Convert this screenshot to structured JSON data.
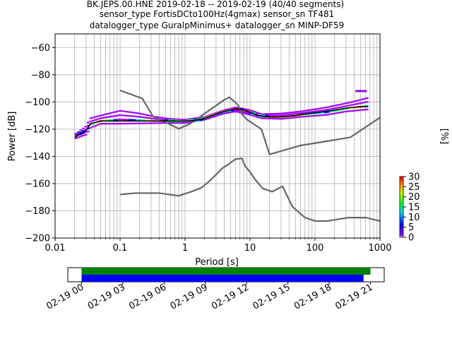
{
  "title": {
    "line1": "BK.JEPS.00.HNE   2019-02-18 -- 2019-02-19  (40/40 segments)",
    "line2": "sensor_type FortisDCto100Hz(4gmax) sensor_sn TF481",
    "line3": "datalogger_type GuralpMinimus+ datalogger_sn MINP-DF59"
  },
  "chart_data": [
    {
      "type": "heatmap",
      "xlabel": "Period [s]",
      "ylabel": "Power [dB]",
      "xscale": "log",
      "xlim": [
        0.01,
        1000
      ],
      "ylim": [
        -200,
        -50
      ],
      "grid": true,
      "x_ticks": [
        {
          "value": 0.01,
          "label": "0.01"
        },
        {
          "value": 0.1,
          "label": "0.1"
        },
        {
          "value": 1,
          "label": "1"
        },
        {
          "value": 10,
          "label": "10"
        },
        {
          "value": 100,
          "label": "100"
        },
        {
          "value": 1000,
          "label": "1000"
        }
      ],
      "y_ticks": [
        {
          "value": -60,
          "label": "−60"
        },
        {
          "value": -80,
          "label": "−80"
        },
        {
          "value": -100,
          "label": "−100"
        },
        {
          "value": -120,
          "label": "−120"
        },
        {
          "value": -140,
          "label": "−140"
        },
        {
          "value": -160,
          "label": "−160"
        },
        {
          "value": -180,
          "label": "−180"
        },
        {
          "value": -200,
          "label": "−200"
        }
      ],
      "colorbar": {
        "label": "[%]",
        "range": [
          0,
          30
        ],
        "ticks": [
          {
            "value": 0,
            "label": "0"
          },
          {
            "value": 5,
            "label": "5"
          },
          {
            "value": 10,
            "label": "10"
          },
          {
            "value": 15,
            "label": "15"
          },
          {
            "value": 20,
            "label": "20"
          },
          {
            "value": 25,
            "label": "25"
          },
          {
            "value": 30,
            "label": "30"
          }
        ]
      },
      "curves": {
        "nhnm_accel": {
          "color": "#666666",
          "points": [
            [
              0.1,
              -91.5
            ],
            [
              0.22,
              -97.5
            ],
            [
              0.32,
              -110.5
            ],
            [
              0.8,
              -119.7
            ],
            [
              1.2,
              -116
            ],
            [
              4,
              -98.5
            ],
            [
              4.8,
              -96.5
            ],
            [
              6.5,
              -102
            ],
            [
              7.5,
              -109
            ],
            [
              9,
              -113
            ],
            [
              15,
              -120
            ],
            [
              20,
              -138.5
            ],
            [
              60,
              -132
            ],
            [
              350,
              -126
            ],
            [
              1000,
              -111.5
            ]
          ]
        },
        "nlnm_accel": {
          "color": "#666666",
          "points": [
            [
              0.1,
              -168
            ],
            [
              0.17,
              -167
            ],
            [
              0.4,
              -167
            ],
            [
              0.8,
              -169
            ],
            [
              1.24,
              -166
            ],
            [
              1.8,
              -163
            ],
            [
              2.4,
              -158
            ],
            [
              3.8,
              -148.5
            ],
            [
              4.6,
              -146
            ],
            [
              6,
              -142
            ],
            [
              7.5,
              -141.5
            ],
            [
              8.5,
              -147.5
            ],
            [
              10,
              -151.5
            ],
            [
              12,
              -157
            ],
            [
              15.6,
              -163.5
            ],
            [
              21.9,
              -166
            ],
            [
              31.6,
              -162
            ],
            [
              45,
              -177
            ],
            [
              70,
              -185
            ],
            [
              101,
              -187.5
            ],
            [
              154,
              -187.5
            ],
            [
              328,
              -185
            ],
            [
              600,
              -185
            ],
            [
              1000,
              -187.5
            ]
          ]
        },
        "mode": {
          "color": "#000000",
          "points": [
            [
              0.02,
              -126
            ],
            [
              0.025,
              -123
            ],
            [
              0.03,
              -121
            ],
            [
              0.035,
              -116
            ],
            [
              0.05,
              -114
            ],
            [
              0.1,
              -114
            ],
            [
              0.3,
              -114
            ],
            [
              0.6,
              -114
            ],
            [
              1,
              -114
            ],
            [
              1.5,
              -113.5
            ],
            [
              2,
              -112
            ],
            [
              3,
              -109
            ],
            [
              4,
              -107
            ],
            [
              5,
              -106
            ],
            [
              6,
              -105
            ],
            [
              8,
              -106
            ],
            [
              10,
              -107.5
            ],
            [
              13,
              -110
            ],
            [
              20,
              -111
            ],
            [
              30,
              -111
            ],
            [
              50,
              -110
            ],
            [
              80,
              -108.5
            ],
            [
              120,
              -107.5
            ],
            [
              200,
              -106
            ],
            [
              300,
              -104.5
            ],
            [
              500,
              -103.5
            ],
            [
              660,
              -103.5
            ]
          ]
        },
        "spread_upper": {
          "points": [
            [
              0.02,
              -124
            ],
            [
              0.03,
              -118
            ],
            [
              0.035,
              -112
            ],
            [
              0.05,
              -110
            ],
            [
              0.1,
              -106.5
            ],
            [
              0.2,
              -108.5
            ],
            [
              0.35,
              -111
            ],
            [
              0.6,
              -112.5
            ],
            [
              1,
              -113
            ],
            [
              2,
              -111
            ],
            [
              4,
              -106
            ],
            [
              6,
              -104
            ],
            [
              10,
              -106
            ],
            [
              15,
              -109
            ],
            [
              30,
              -108.5
            ],
            [
              60,
              -107
            ],
            [
              150,
              -104
            ],
            [
              300,
              -101
            ],
            [
              450,
              -99
            ],
            [
              660,
              -97
            ]
          ]
        },
        "spread_lower": {
          "points": [
            [
              0.02,
              -127
            ],
            [
              0.03,
              -124
            ],
            [
              0.035,
              -119
            ],
            [
              0.05,
              -116
            ],
            [
              0.1,
              -116
            ],
            [
              0.5,
              -115.5
            ],
            [
              1,
              -115.5
            ],
            [
              2,
              -113
            ],
            [
              4,
              -108.5
            ],
            [
              6,
              -107
            ],
            [
              10,
              -109.5
            ],
            [
              15,
              -112
            ],
            [
              30,
              -112.5
            ],
            [
              60,
              -111
            ],
            [
              150,
              -109.5
            ],
            [
              300,
              -107
            ],
            [
              660,
              -105.5
            ]
          ]
        },
        "outliers": [
          [
            450,
            -92
          ],
          [
            500,
            -92
          ],
          [
            580,
            -92
          ]
        ]
      }
    },
    {
      "type": "timeline",
      "time_ticks": [
        {
          "hour": 0,
          "label": "02-19 00"
        },
        {
          "hour": 3,
          "label": "02-19 03"
        },
        {
          "hour": 6,
          "label": "02-19 06"
        },
        {
          "hour": 9,
          "label": "02-19 09"
        },
        {
          "hour": 12,
          "label": "02-19 12"
        },
        {
          "hour": 15,
          "label": "02-19 15"
        },
        {
          "hour": 18,
          "label": "02-19 18"
        },
        {
          "hour": 21,
          "label": "02-19 21"
        }
      ],
      "xlim_hours": [
        -1.0,
        22.0
      ],
      "bars": [
        {
          "start_hour": 0,
          "end_hour": 21.0,
          "color": "#008000"
        },
        {
          "start_hour": 0,
          "end_hour": 20.5,
          "color": "#0000ff"
        }
      ]
    }
  ]
}
